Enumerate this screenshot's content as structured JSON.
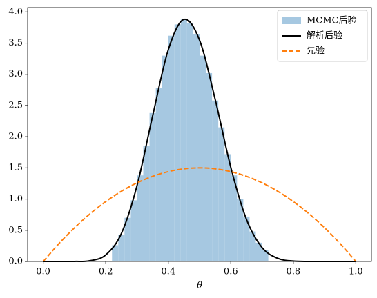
{
  "chart_data": {
    "type": "histogram",
    "xlabel": "θ",
    "xlim": [
      -0.05,
      1.05
    ],
    "ylim": [
      0,
      4.07
    ],
    "xticks": [
      {
        "value": 0,
        "label": "0.0"
      },
      0.2,
      0.4,
      0.6,
      0.8,
      {
        "value": 1,
        "label": "1.0"
      }
    ],
    "yticks": [
      {
        "value": 0,
        "label": "0.0"
      },
      0.5,
      {
        "value": 1,
        "label": "1.0"
      },
      1.5,
      {
        "value": 2,
        "label": "2.0"
      },
      2.5,
      {
        "value": 3,
        "label": "3.0"
      },
      3.5,
      {
        "value": 4,
        "label": "4.0"
      }
    ],
    "legend": "upper right",
    "series": [
      {
        "name": "MCMC后验",
        "type": "histogram",
        "color": "#a6c8e1",
        "bins": [
          0.22,
          0.24,
          0.26,
          0.28,
          0.3,
          0.32,
          0.34,
          0.36,
          0.38,
          0.4,
          0.42,
          0.44,
          0.46,
          0.48,
          0.5,
          0.52,
          0.54,
          0.56,
          0.58,
          0.6,
          0.62,
          0.64,
          0.66,
          0.68,
          0.7,
          0.72
        ],
        "values": [
          0.26,
          0.42,
          0.7,
          0.98,
          1.38,
          1.85,
          2.38,
          2.78,
          3.3,
          3.62,
          3.8,
          3.88,
          3.82,
          3.65,
          3.3,
          3.02,
          2.58,
          2.15,
          1.72,
          1.38,
          1.0,
          0.72,
          0.48,
          0.3,
          0.18
        ]
      },
      {
        "name": "解析后验",
        "type": "line",
        "color": "#000000",
        "dash": false,
        "x": [
          0,
          0.05,
          0.1,
          0.15,
          0.2,
          0.25,
          0.3,
          0.35,
          0.4,
          0.45,
          0.5,
          0.55,
          0.6,
          0.65,
          0.7,
          0.75,
          0.8,
          0.85,
          0.9,
          0.95,
          1
        ],
        "values": [
          0,
          0,
          0.0004,
          0.012,
          0.105,
          0.449,
          1.215,
          2.335,
          3.394,
          3.881,
          3.547,
          2.599,
          1.508,
          0.676,
          0.223,
          0.05,
          0.0065,
          0.0004,
          0,
          0,
          0
        ]
      },
      {
        "name": "先验",
        "type": "line",
        "color": "#ff7f0e",
        "dash": true,
        "x": [
          0,
          0.05,
          0.1,
          0.15,
          0.2,
          0.25,
          0.3,
          0.35,
          0.4,
          0.45,
          0.5,
          0.55,
          0.6,
          0.65,
          0.7,
          0.75,
          0.8,
          0.85,
          0.9,
          0.95,
          1
        ],
        "values": [
          0,
          0.285,
          0.54,
          0.765,
          0.96,
          1.125,
          1.26,
          1.365,
          1.44,
          1.485,
          1.5,
          1.485,
          1.44,
          1.365,
          1.26,
          1.125,
          0.96,
          0.765,
          0.54,
          0.285,
          0
        ]
      }
    ]
  }
}
